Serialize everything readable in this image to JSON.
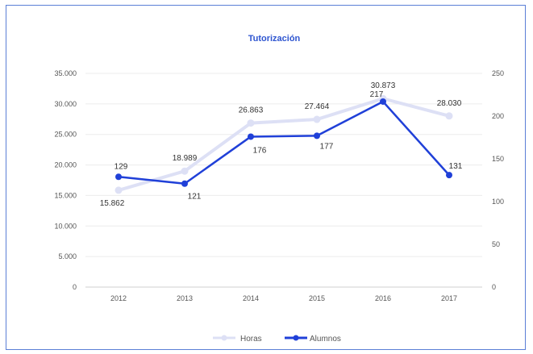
{
  "chart_data": {
    "type": "line",
    "title": "Tutorización",
    "categories": [
      "2012",
      "2013",
      "2014",
      "2015",
      "2016",
      "2017"
    ],
    "series": [
      {
        "name": "Horas",
        "axis": "left",
        "color": "#dde0f5",
        "values": [
          15862,
          18989,
          26863,
          27464,
          30873,
          28030
        ],
        "labels": [
          "15.862",
          "18.989",
          "26.863",
          "27.464",
          "30.873",
          "28.030"
        ]
      },
      {
        "name": "Alumnos",
        "axis": "right",
        "color": "#2040d8",
        "values": [
          129,
          121,
          176,
          177,
          217,
          131
        ],
        "labels": [
          "129",
          "121",
          "176",
          "177",
          "217",
          "131"
        ]
      }
    ],
    "y_left": {
      "ylim": [
        0,
        35000
      ],
      "ticks": [
        "0",
        "5.000",
        "10.000",
        "15.000",
        "20.000",
        "25.000",
        "30.000",
        "35.000"
      ]
    },
    "y_right": {
      "ylim": [
        0,
        250
      ],
      "ticks": [
        "0",
        "50",
        "100",
        "150",
        "200",
        "250"
      ]
    },
    "grid": true,
    "legend": "bottom"
  }
}
